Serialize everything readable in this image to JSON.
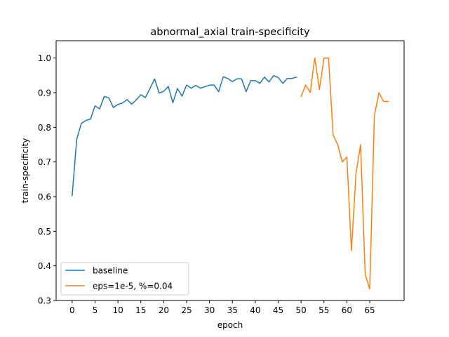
{
  "chart_data": {
    "type": "line",
    "title": "abnormal_axial train-specificity",
    "xlabel": "epoch",
    "ylabel": "train-specificity",
    "xlim": [
      -3.5,
      72.5
    ],
    "ylim": [
      0.3,
      1.05
    ],
    "x_ticks": [
      0,
      5,
      10,
      15,
      20,
      25,
      30,
      35,
      40,
      45,
      50,
      55,
      60,
      65
    ],
    "y_ticks": [
      0.3,
      0.4,
      0.5,
      0.6,
      0.7,
      0.8,
      0.9,
      1.0
    ],
    "x_tick_labels": [
      "0",
      "5",
      "10",
      "15",
      "20",
      "25",
      "30",
      "35",
      "40",
      "45",
      "50",
      "55",
      "60",
      "65"
    ],
    "y_tick_labels": [
      "0.3",
      "0.4",
      "0.5",
      "0.6",
      "0.7",
      "0.8",
      "0.9",
      "1.0"
    ],
    "grid": false,
    "legend_position": "lower-left",
    "series": [
      {
        "name": "baseline",
        "color": "#1f77b4",
        "x": [
          0,
          1,
          2,
          3,
          4,
          5,
          6,
          7,
          8,
          9,
          10,
          11,
          12,
          13,
          14,
          15,
          16,
          17,
          18,
          19,
          20,
          21,
          22,
          23,
          24,
          25,
          26,
          27,
          28,
          29,
          30,
          31,
          32,
          33,
          34,
          35,
          36,
          37,
          38,
          39,
          40,
          41,
          42,
          43,
          44,
          45,
          46,
          47,
          48,
          49
        ],
        "values": [
          0.603,
          0.765,
          0.811,
          0.82,
          0.824,
          0.862,
          0.853,
          0.889,
          0.885,
          0.857,
          0.866,
          0.87,
          0.88,
          0.867,
          0.879,
          0.894,
          0.886,
          0.912,
          0.94,
          0.899,
          0.904,
          0.918,
          0.871,
          0.912,
          0.89,
          0.922,
          0.913,
          0.921,
          0.913,
          0.917,
          0.922,
          0.922,
          0.903,
          0.946,
          0.941,
          0.932,
          0.94,
          0.94,
          0.903,
          0.935,
          0.935,
          0.927,
          0.945,
          0.931,
          0.949,
          0.944,
          0.927,
          0.941,
          0.941,
          0.945
        ]
      },
      {
        "name": "eps=1e-5, %=0.04",
        "color": "#ff7f0e",
        "x": [
          50,
          51,
          52,
          53,
          54,
          55,
          56,
          57,
          58,
          59,
          60,
          61,
          62,
          63,
          64,
          65,
          66,
          67,
          68,
          69
        ],
        "values": [
          0.889,
          0.922,
          0.901,
          1.0,
          0.909,
          1.0,
          1.0,
          0.778,
          0.75,
          0.7,
          0.714,
          0.444,
          0.667,
          0.75,
          0.375,
          0.333,
          0.833,
          0.9,
          0.875,
          0.875
        ]
      }
    ]
  }
}
